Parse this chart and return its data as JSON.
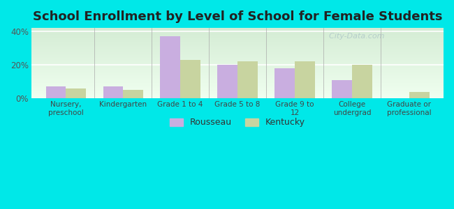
{
  "title": "School Enrollment by Level of School for Female Students",
  "categories": [
    "Nursery,\npreschool",
    "Kindergarten",
    "Grade 1 to 4",
    "Grade 5 to 8",
    "Grade 9 to\n12",
    "College\nundergrad",
    "Graduate or\nprofessional"
  ],
  "rousseau": [
    7,
    7,
    37,
    20,
    18,
    11,
    0
  ],
  "kentucky": [
    6,
    5,
    23,
    22,
    22,
    20,
    4
  ],
  "rousseau_color": "#c9aee0",
  "kentucky_color": "#c8d4a0",
  "background_outer": "#00e8e8",
  "background_inner_topleft": "#d4ecd4",
  "background_inner_bottomright": "#f8fff8",
  "yticks": [
    0,
    20,
    40
  ],
  "ylim": [
    0,
    42
  ],
  "ylabel_labels": [
    "0%",
    "20%",
    "40%"
  ],
  "bar_width": 0.35,
  "title_fontsize": 13,
  "legend_labels": [
    "Rousseau",
    "Kentucky"
  ],
  "watermark": "  City-Data.com"
}
